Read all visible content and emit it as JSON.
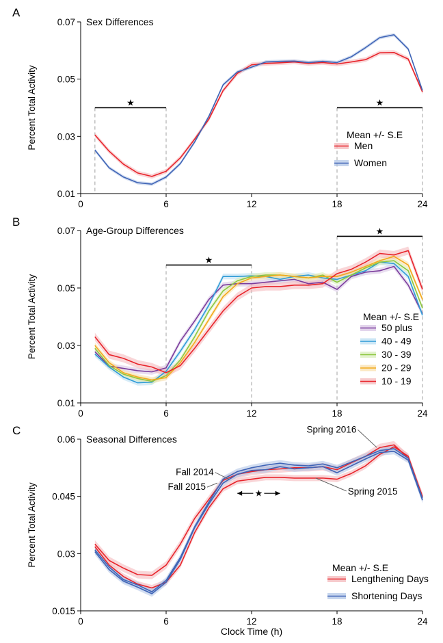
{
  "figure": {
    "xlabel": "Clock Time (h)"
  },
  "chart_data": [
    {
      "panel_letter": "A",
      "type": "line",
      "title": "Sex Differences",
      "ylabel": "Percent Total Activity",
      "xlim": [
        0,
        24
      ],
      "ylim": [
        0.01,
        0.07
      ],
      "xticks": [
        0,
        6,
        12,
        18,
        24
      ],
      "xtick_labels": [
        "0",
        "6",
        "12",
        "18",
        "24"
      ],
      "yticks": [
        0.01,
        0.03,
        0.05,
        0.07
      ],
      "ytick_labels": [
        "0.01",
        "0.03",
        "0.05",
        "0.07"
      ],
      "legend_title": "Mean +/- S.E",
      "legend_position": "bottom-right",
      "x": [
        1,
        2,
        3,
        4,
        5,
        6,
        7,
        8,
        9,
        10,
        11,
        12,
        13,
        14,
        15,
        16,
        17,
        18,
        19,
        20,
        21,
        22,
        23,
        24
      ],
      "series": [
        {
          "name": "Men",
          "color": "#e8242b",
          "band": "#f4b5b8",
          "values": [
            0.0305,
            0.0248,
            0.0203,
            0.0172,
            0.016,
            0.0178,
            0.0225,
            0.029,
            0.036,
            0.046,
            0.052,
            0.055,
            0.0555,
            0.0557,
            0.056,
            0.0555,
            0.0558,
            0.0553,
            0.056,
            0.0568,
            0.0592,
            0.0593,
            0.057,
            0.0455
          ],
          "se": 0.0008
        },
        {
          "name": "Women",
          "color": "#3f64b6",
          "band": "#aec3e6",
          "values": [
            0.0252,
            0.019,
            0.0158,
            0.0138,
            0.0133,
            0.0158,
            0.0205,
            0.028,
            0.037,
            0.048,
            0.0525,
            0.0542,
            0.056,
            0.0562,
            0.0563,
            0.0558,
            0.0562,
            0.0558,
            0.0578,
            0.061,
            0.0645,
            0.0655,
            0.0605,
            0.046
          ],
          "se": 0.0006
        }
      ],
      "annotations": [
        {
          "type": "significance",
          "symbol": "★",
          "x_start": 1,
          "x_end": 6,
          "y": 0.04
        },
        {
          "type": "significance",
          "symbol": "★",
          "x_start": 18,
          "x_end": 24,
          "y": 0.04
        }
      ]
    },
    {
      "panel_letter": "B",
      "type": "line",
      "title": "Age-Group Differences",
      "ylabel": "Percent Total Activity",
      "xlim": [
        0,
        24
      ],
      "ylim": [
        0.01,
        0.07
      ],
      "xticks": [
        0,
        6,
        12,
        18,
        24
      ],
      "xtick_labels": [
        "0",
        "6",
        "12",
        "18",
        "24"
      ],
      "yticks": [
        0.01,
        0.03,
        0.05,
        0.07
      ],
      "ytick_labels": [
        "0.01",
        "0.03",
        "0.05",
        "0.07"
      ],
      "legend_title": "Mean +/- S.E",
      "legend_position": "bottom-right",
      "x": [
        1,
        2,
        3,
        4,
        5,
        6,
        7,
        8,
        9,
        10,
        11,
        12,
        13,
        14,
        15,
        16,
        17,
        18,
        19,
        20,
        21,
        22,
        23,
        24
      ],
      "series": [
        {
          "name": "50 plus",
          "color": "#7a3c9c",
          "band": "#d7c3e4",
          "values": [
            0.0278,
            0.0228,
            0.022,
            0.0212,
            0.0208,
            0.0222,
            0.0315,
            0.0385,
            0.046,
            0.051,
            0.0515,
            0.0515,
            0.052,
            0.0525,
            0.053,
            0.0515,
            0.052,
            0.0495,
            0.054,
            0.0555,
            0.056,
            0.0575,
            0.051,
            0.041
          ],
          "se": 0.001
        },
        {
          "name": "40 - 49",
          "color": "#2f9bd6",
          "band": "#b6ddf2",
          "values": [
            0.027,
            0.0225,
            0.019,
            0.017,
            0.0172,
            0.021,
            0.028,
            0.0355,
            0.044,
            0.054,
            0.054,
            0.0542,
            0.054,
            0.053,
            0.054,
            0.0545,
            0.0535,
            0.053,
            0.0545,
            0.056,
            0.059,
            0.0585,
            0.054,
            0.0405
          ],
          "se": 0.001
        },
        {
          "name": "30 - 39",
          "color": "#8dc63f",
          "band": "#d6ecb8",
          "values": [
            0.029,
            0.023,
            0.02,
            0.0185,
            0.0175,
            0.0195,
            0.025,
            0.033,
            0.042,
            0.049,
            0.0525,
            0.054,
            0.0545,
            0.0545,
            0.054,
            0.0535,
            0.0545,
            0.052,
            0.0545,
            0.057,
            0.059,
            0.0595,
            0.056,
            0.043
          ],
          "se": 0.001
        },
        {
          "name": "20 - 29",
          "color": "#f2a91d",
          "band": "#f9dea8",
          "values": [
            0.03,
            0.024,
            0.0205,
            0.019,
            0.018,
            0.0188,
            0.024,
            0.031,
            0.039,
            0.047,
            0.0515,
            0.0535,
            0.054,
            0.0545,
            0.054,
            0.0535,
            0.054,
            0.054,
            0.0555,
            0.0575,
            0.0595,
            0.061,
            0.058,
            0.046
          ],
          "se": 0.001
        },
        {
          "name": "10 - 19",
          "color": "#e8242b",
          "band": "#f4b5b8",
          "values": [
            0.033,
            0.0268,
            0.0255,
            0.0235,
            0.0225,
            0.0205,
            0.023,
            0.029,
            0.0355,
            0.042,
            0.047,
            0.05,
            0.0505,
            0.0505,
            0.051,
            0.051,
            0.0515,
            0.055,
            0.0565,
            0.059,
            0.062,
            0.0615,
            0.063,
            0.0495
          ],
          "se": 0.0014
        }
      ],
      "annotations": [
        {
          "type": "significance",
          "symbol": "★",
          "x_start": 6,
          "x_end": 12,
          "y": 0.058
        },
        {
          "type": "significance",
          "symbol": "★",
          "x_start": 18,
          "x_end": 24,
          "y": 0.068
        }
      ]
    },
    {
      "panel_letter": "C",
      "type": "line",
      "title": "Seasonal Differences",
      "ylabel": "Percent Total Activity",
      "xlim": [
        0,
        24
      ],
      "ylim": [
        0.015,
        0.06
      ],
      "xticks": [
        0,
        6,
        12,
        18,
        24
      ],
      "xtick_labels": [
        "0",
        "6",
        "12",
        "18",
        "24"
      ],
      "yticks": [
        0.015,
        0.03,
        0.045,
        0.06
      ],
      "ytick_labels": [
        "0.015",
        "0.03",
        "0.045",
        "0.06"
      ],
      "legend_title": "Mean +/- S.E",
      "legend_position": "bottom-right",
      "legend": [
        {
          "label": "Lengthening Days",
          "color": "#e8242b",
          "band": "#f4b5b8"
        },
        {
          "label": "Shortening Days",
          "color": "#3f64b6",
          "band": "#aec3e6"
        }
      ],
      "x": [
        1,
        2,
        3,
        4,
        5,
        6,
        7,
        8,
        9,
        10,
        11,
        12,
        13,
        14,
        15,
        16,
        17,
        18,
        19,
        20,
        21,
        22,
        23,
        24
      ],
      "series": [
        {
          "name": "Spring 2016",
          "color": "#e8242b",
          "band": "#f4b5b8",
          "values": [
            0.0325,
            0.0282,
            0.0262,
            0.0245,
            0.0243,
            0.027,
            0.0325,
            0.0392,
            0.0442,
            0.0492,
            0.0508,
            0.0515,
            0.052,
            0.0522,
            0.0525,
            0.0525,
            0.0528,
            0.052,
            0.0538,
            0.0555,
            0.0578,
            0.0585,
            0.055,
            0.045
          ],
          "se": 0.001
        },
        {
          "name": "Spring 2015",
          "color": "#e8242b",
          "band": "#f4b5b8",
          "values": [
            0.0318,
            0.027,
            0.024,
            0.022,
            0.021,
            0.0225,
            0.027,
            0.0355,
            0.042,
            0.047,
            0.049,
            0.0495,
            0.05,
            0.05,
            0.0498,
            0.0498,
            0.0498,
            0.0495,
            0.051,
            0.053,
            0.056,
            0.058,
            0.0555,
            0.0448
          ],
          "se": 0.0008
        },
        {
          "name": "Fall 2014",
          "color": "#3f64b6",
          "band": "#aec3e6",
          "values": [
            0.031,
            0.0265,
            0.0232,
            0.0218,
            0.02,
            0.023,
            0.029,
            0.037,
            0.0435,
            0.0495,
            0.0515,
            0.0525,
            0.0532,
            0.0537,
            0.0532,
            0.053,
            0.0535,
            0.0525,
            0.054,
            0.0555,
            0.057,
            0.0575,
            0.055,
            0.0445
          ],
          "se": 0.0008
        },
        {
          "name": "Fall 2015",
          "color": "#3f64b6",
          "band": "#aec3e6",
          "values": [
            0.0305,
            0.0258,
            0.0228,
            0.0212,
            0.0195,
            0.0225,
            0.0285,
            0.0368,
            0.043,
            0.0485,
            0.0508,
            0.0518,
            0.052,
            0.0528,
            0.0522,
            0.0525,
            0.0528,
            0.0512,
            0.053,
            0.0548,
            0.0565,
            0.0568,
            0.0545,
            0.044
          ],
          "se": 0.0008
        }
      ],
      "annotations": [
        {
          "type": "label",
          "text": "Spring 2016",
          "series": "Spring 2016",
          "x": 20.8
        },
        {
          "type": "label",
          "text": "Fall 2014",
          "series": "Fall 2014",
          "x": 10.4
        },
        {
          "type": "label",
          "text": "Fall 2015",
          "series": "Fall 2015",
          "x": 9.6
        },
        {
          "type": "label",
          "text": "Spring 2015",
          "series": "Spring 2015",
          "x": 16.5
        },
        {
          "type": "significance_arrow",
          "symbol": "★",
          "x_start": 11,
          "x_end": 14,
          "y": 0.0458
        }
      ]
    }
  ]
}
